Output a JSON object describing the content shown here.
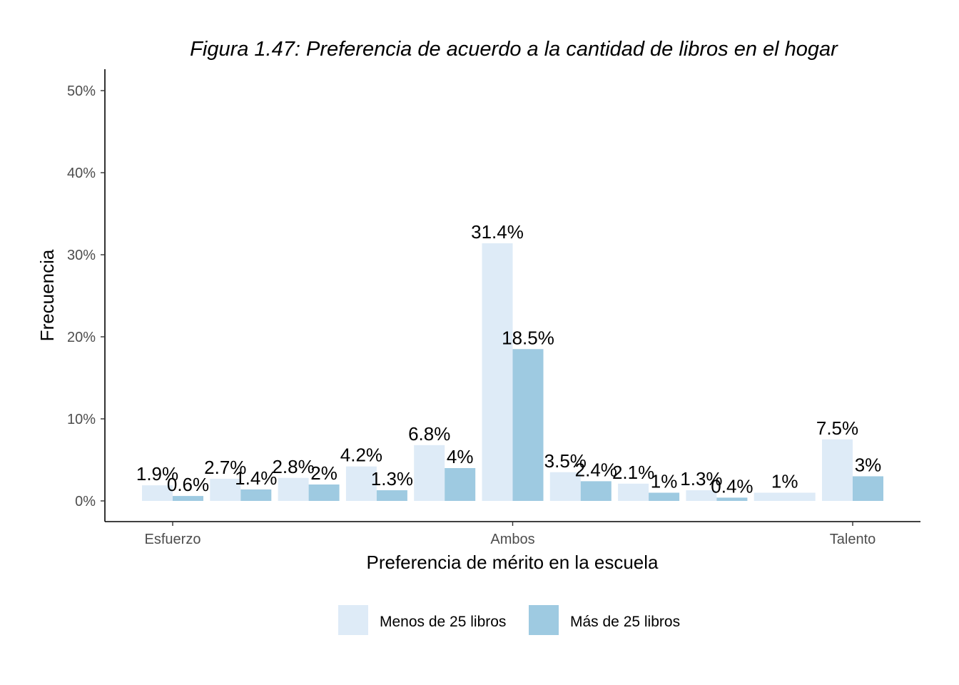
{
  "chart_data": {
    "type": "bar",
    "title": "Figura 1.47: Preferencia de acuerdo a la cantidad de libros en el hogar",
    "xlabel": "Preferencia de mérito en la escuela",
    "ylabel": "Frecuencia",
    "ylim": [
      0,
      52.5
    ],
    "yticks": [
      0,
      10,
      20,
      30,
      40,
      50
    ],
    "ytick_labels": [
      "0%",
      "10%",
      "20%",
      "30%",
      "40%",
      "50%"
    ],
    "x_tick_labels": [
      {
        "label": "Esfuerzo",
        "at": 1
      },
      {
        "label": "Ambos",
        "at": 6
      },
      {
        "label": "Talento",
        "at": 11
      }
    ],
    "categories": [
      1,
      2,
      3,
      4,
      5,
      6,
      7,
      8,
      9,
      10,
      11
    ],
    "series": [
      {
        "name": "Menos de 25 libros",
        "color": "#deebf7",
        "values": [
          1.9,
          2.7,
          2.8,
          4.2,
          6.8,
          31.4,
          3.5,
          2.1,
          1.3,
          1.0,
          7.5
        ],
        "labels": [
          "1.9%",
          "2.7%",
          "2.8%",
          "4.2%",
          "6.8%",
          "31.4%",
          "3.5%",
          "2.1%",
          "1.3%",
          "1%",
          "7.5%"
        ]
      },
      {
        "name": "Más de 25 libros",
        "color": "#9ecae1",
        "values": [
          0.6,
          1.4,
          2.0,
          1.3,
          4.0,
          18.5,
          2.4,
          1.0,
          0.4,
          null,
          3.0
        ],
        "labels": [
          "0.6%",
          "1.4%",
          "2%",
          "1.3%",
          "4%",
          "18.5%",
          "2.4%",
          "1%",
          "0.4%",
          null,
          "3%"
        ]
      }
    ],
    "legend_position": "bottom",
    "grid": false
  }
}
